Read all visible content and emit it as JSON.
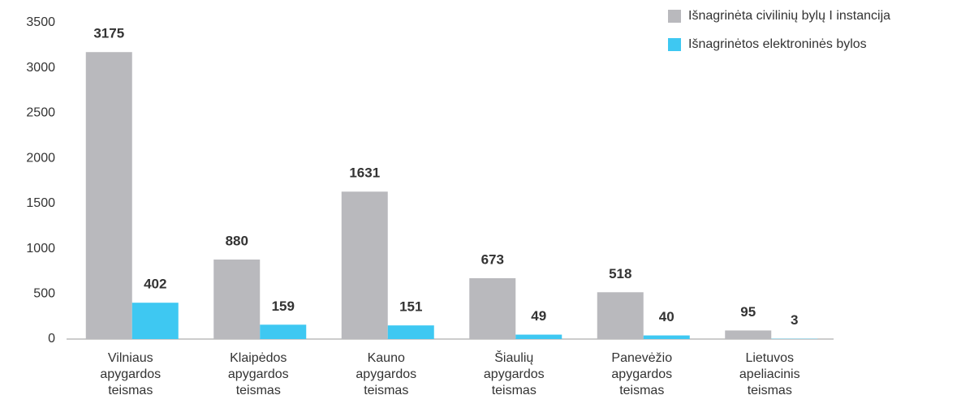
{
  "chart_data": {
    "type": "bar",
    "categories": [
      "Vilniaus apygardos teismas",
      "Klaipėdos apygardos teismas",
      "Kauno apygardos teismas",
      "Šiaulių apygardos teismas",
      "Panevėžio apygardos teismas",
      "Lietuvos apeliacinis teismas"
    ],
    "series": [
      {
        "name": "Išnagrinėta civilinių bylų I instancija",
        "color": "#b9b9bd",
        "values": [
          3175,
          880,
          1631,
          673,
          518,
          95
        ]
      },
      {
        "name": "Išnagrinėtos elektroninės bylos",
        "color": "#3ec8f2",
        "values": [
          402,
          159,
          151,
          49,
          40,
          3
        ]
      }
    ],
    "ylim": [
      0,
      3500
    ],
    "yticks": [
      0,
      500,
      1000,
      1500,
      2000,
      2500,
      3000,
      3500
    ],
    "grid": false,
    "legend": "top-right"
  }
}
